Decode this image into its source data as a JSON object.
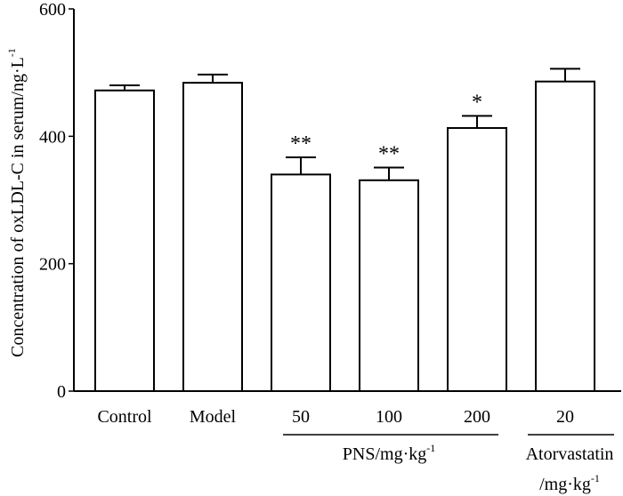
{
  "chart_data": {
    "type": "bar",
    "categories": [
      "Control",
      "Model",
      "50",
      "100",
      "200",
      "20"
    ],
    "values": [
      472,
      484,
      340,
      331,
      413,
      486
    ],
    "errors": [
      8,
      13,
      27,
      20,
      19,
      20
    ],
    "significance": [
      "",
      "",
      "**",
      "**",
      "*",
      ""
    ],
    "ylabel_main": "Concentration of oxLDL-C in serum/ng·L",
    "ylabel_sup": "-1",
    "ylim": [
      0,
      600
    ],
    "yticks": [
      0,
      200,
      400,
      600
    ],
    "groups": [
      {
        "label": "PNS/mg·kg",
        "sup": "-1",
        "categories": [
          "50",
          "100",
          "200"
        ]
      },
      {
        "label": "Atorvastatin",
        "sub_label": "/mg·kg",
        "sup": "-1",
        "categories": [
          "20"
        ]
      }
    ],
    "colors": {
      "bar_fill": "#ffffff",
      "bar_stroke": "#000000"
    }
  }
}
